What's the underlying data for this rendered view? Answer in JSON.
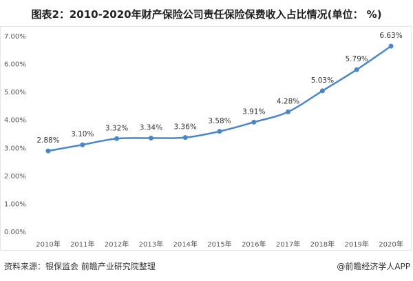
{
  "chart_data": {
    "type": "line",
    "title": "图表2：2010-2020年财产保险公司责任保险保费收入占比情况(单位： %)",
    "categories": [
      "2010年",
      "2011年",
      "2012年",
      "2013年",
      "2014年",
      "2015年",
      "2016年",
      "2017年",
      "2018年",
      "2019年",
      "2020年"
    ],
    "values": [
      2.88,
      3.1,
      3.32,
      3.34,
      3.36,
      3.58,
      3.91,
      4.28,
      5.03,
      5.79,
      6.63
    ],
    "data_labels": [
      "2.88%",
      "3.10%",
      "3.32%",
      "3.34%",
      "3.36%",
      "3.58%",
      "3.91%",
      "4.28%",
      "5.03%",
      "5.79%",
      "6.63%"
    ],
    "yticks": [
      "0.00%",
      "1.00%",
      "2.00%",
      "3.00%",
      "4.00%",
      "5.00%",
      "6.00%",
      "7.00%"
    ],
    "ylim": [
      0,
      7
    ],
    "xlabel": "",
    "ylabel": "",
    "grid": false,
    "series_color": "#4a86c8"
  },
  "footer": {
    "source": "资料来源：银保监会 前瞻产业研究院整理",
    "credit": "@前瞻经济学人APP"
  }
}
